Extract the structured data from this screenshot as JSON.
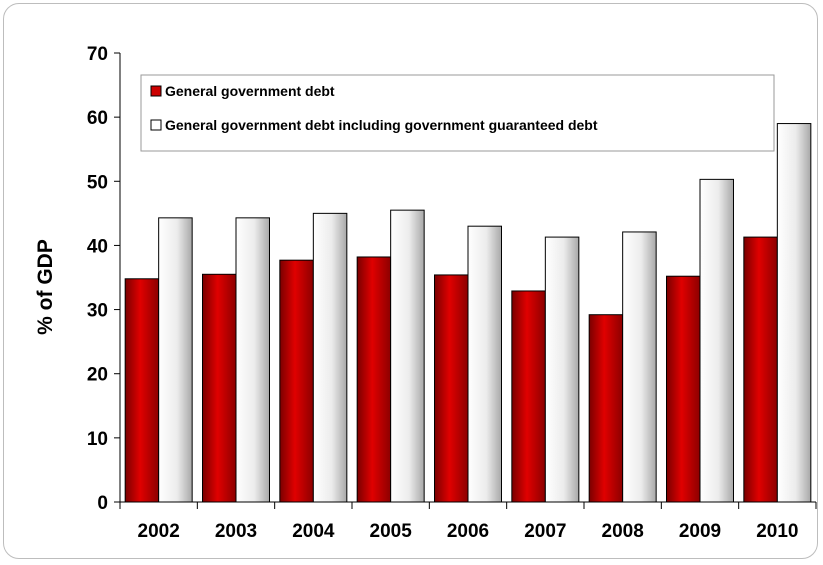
{
  "chart_data": {
    "type": "bar",
    "categories": [
      "2002",
      "2003",
      "2004",
      "2005",
      "2006",
      "2007",
      "2008",
      "2009",
      "2010"
    ],
    "series": [
      {
        "name": "General government debt",
        "values": [
          34.8,
          35.5,
          37.7,
          38.2,
          35.4,
          32.9,
          29.2,
          35.2,
          41.3
        ]
      },
      {
        "name": "General government debt including government guaranteed debt",
        "values": [
          44.3,
          44.3,
          45.0,
          45.5,
          43.0,
          41.3,
          42.1,
          50.3,
          59.0
        ]
      }
    ],
    "title": "",
    "xlabel": "",
    "ylabel": "% of GDP",
    "ylim": [
      0,
      70
    ],
    "yticks": [
      0,
      10,
      20,
      30,
      40,
      50,
      60,
      70
    ],
    "grid": false,
    "legend_position": "top",
    "colors": {
      "series1": "#cc0000",
      "series2": "#f0f0f0"
    }
  }
}
